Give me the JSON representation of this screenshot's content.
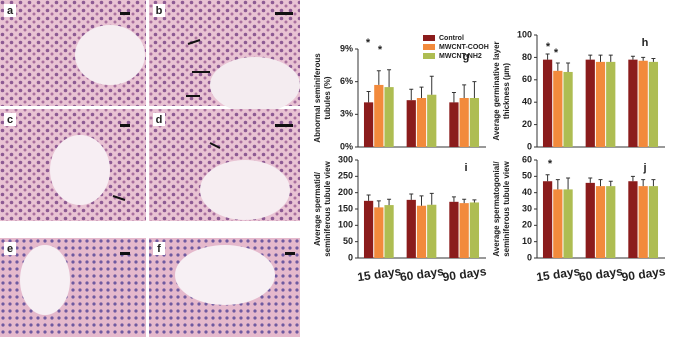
{
  "image_panels": [
    "a",
    "b",
    "c",
    "d",
    "e",
    "f"
  ],
  "chart_data": [
    {
      "type": "bar",
      "panel_label": "g",
      "ylabel": [
        "Abnormal seminiferous",
        "tubules (%)"
      ],
      "categories": [
        null,
        null,
        null
      ],
      "ylim": [
        0,
        9
      ],
      "yticks": [
        {
          "value": 0,
          "label": "0%"
        },
        {
          "value": 3,
          "label": "3%"
        },
        {
          "value": 6,
          "label": "6%"
        },
        {
          "value": 9,
          "label": "9%"
        }
      ],
      "legend": "top",
      "annotations": [
        "*",
        "*"
      ],
      "series": [
        {
          "name": "Control",
          "color": "#8b1c1c",
          "values": [
            4.1,
            4.3,
            4.1
          ],
          "errors": [
            1.0,
            1.0,
            0.9
          ]
        },
        {
          "name": "MWCNT-COOH",
          "color": "#f28a3c",
          "values": [
            5.7,
            4.5,
            4.5
          ],
          "errors": [
            1.3,
            1.0,
            1.2
          ]
        },
        {
          "name": "MWCNT-NH2",
          "color": "#aebd52",
          "values": [
            5.5,
            4.8,
            4.5
          ],
          "errors": [
            1.6,
            1.7,
            1.5
          ]
        }
      ]
    },
    {
      "type": "bar",
      "panel_label": "h",
      "ylabel": [
        "Average germinative layer",
        "thickness (µm)"
      ],
      "categories": [
        null,
        null,
        null
      ],
      "ylim": [
        0,
        100
      ],
      "yticks": [
        0,
        20,
        40,
        60,
        80,
        100
      ],
      "annotations": [
        "*",
        "*"
      ],
      "series": [
        {
          "color": "#8b1c1c",
          "values": [
            78,
            78,
            78
          ],
          "errors": [
            5,
            4,
            3
          ]
        },
        {
          "color": "#f28a3c",
          "values": [
            68,
            76,
            77
          ],
          "errors": [
            7,
            6,
            3
          ]
        },
        {
          "color": "#aebd52",
          "values": [
            67,
            76,
            76
          ],
          "errors": [
            8,
            6,
            3
          ]
        }
      ]
    },
    {
      "type": "bar",
      "panel_label": "i",
      "ylabel": [
        "Average spermatid/",
        "seminiferous tubule view"
      ],
      "categories": [
        "15 days",
        "60 days",
        "90 days"
      ],
      "ylim": [
        0,
        300
      ],
      "yticks": [
        0,
        50,
        100,
        150,
        200,
        250,
        300
      ],
      "series": [
        {
          "color": "#8b1c1c",
          "values": [
            175,
            178,
            172
          ],
          "errors": [
            18,
            18,
            15
          ]
        },
        {
          "color": "#f28a3c",
          "values": [
            155,
            160,
            168
          ],
          "errors": [
            20,
            30,
            12
          ]
        },
        {
          "color": "#aebd52",
          "values": [
            162,
            163,
            170
          ],
          "errors": [
            18,
            35,
            8
          ]
        }
      ]
    },
    {
      "type": "bar",
      "panel_label": "j",
      "ylabel": [
        "Average spermatogonial/",
        "seminiferous tubule view"
      ],
      "categories": [
        "15 days",
        "60 days",
        "90 days"
      ],
      "ylim": [
        0,
        60
      ],
      "yticks": [
        0,
        10,
        20,
        30,
        40,
        50,
        60
      ],
      "annotations": [
        "*"
      ],
      "series": [
        {
          "color": "#8b1c1c",
          "values": [
            47,
            46,
            47
          ],
          "errors": [
            4,
            3,
            3
          ]
        },
        {
          "color": "#f28a3c",
          "values": [
            42,
            44,
            44
          ],
          "errors": [
            6,
            4,
            4
          ]
        },
        {
          "color": "#aebd52",
          "values": [
            42,
            44,
            44
          ],
          "errors": [
            7,
            3,
            4
          ]
        }
      ]
    }
  ]
}
